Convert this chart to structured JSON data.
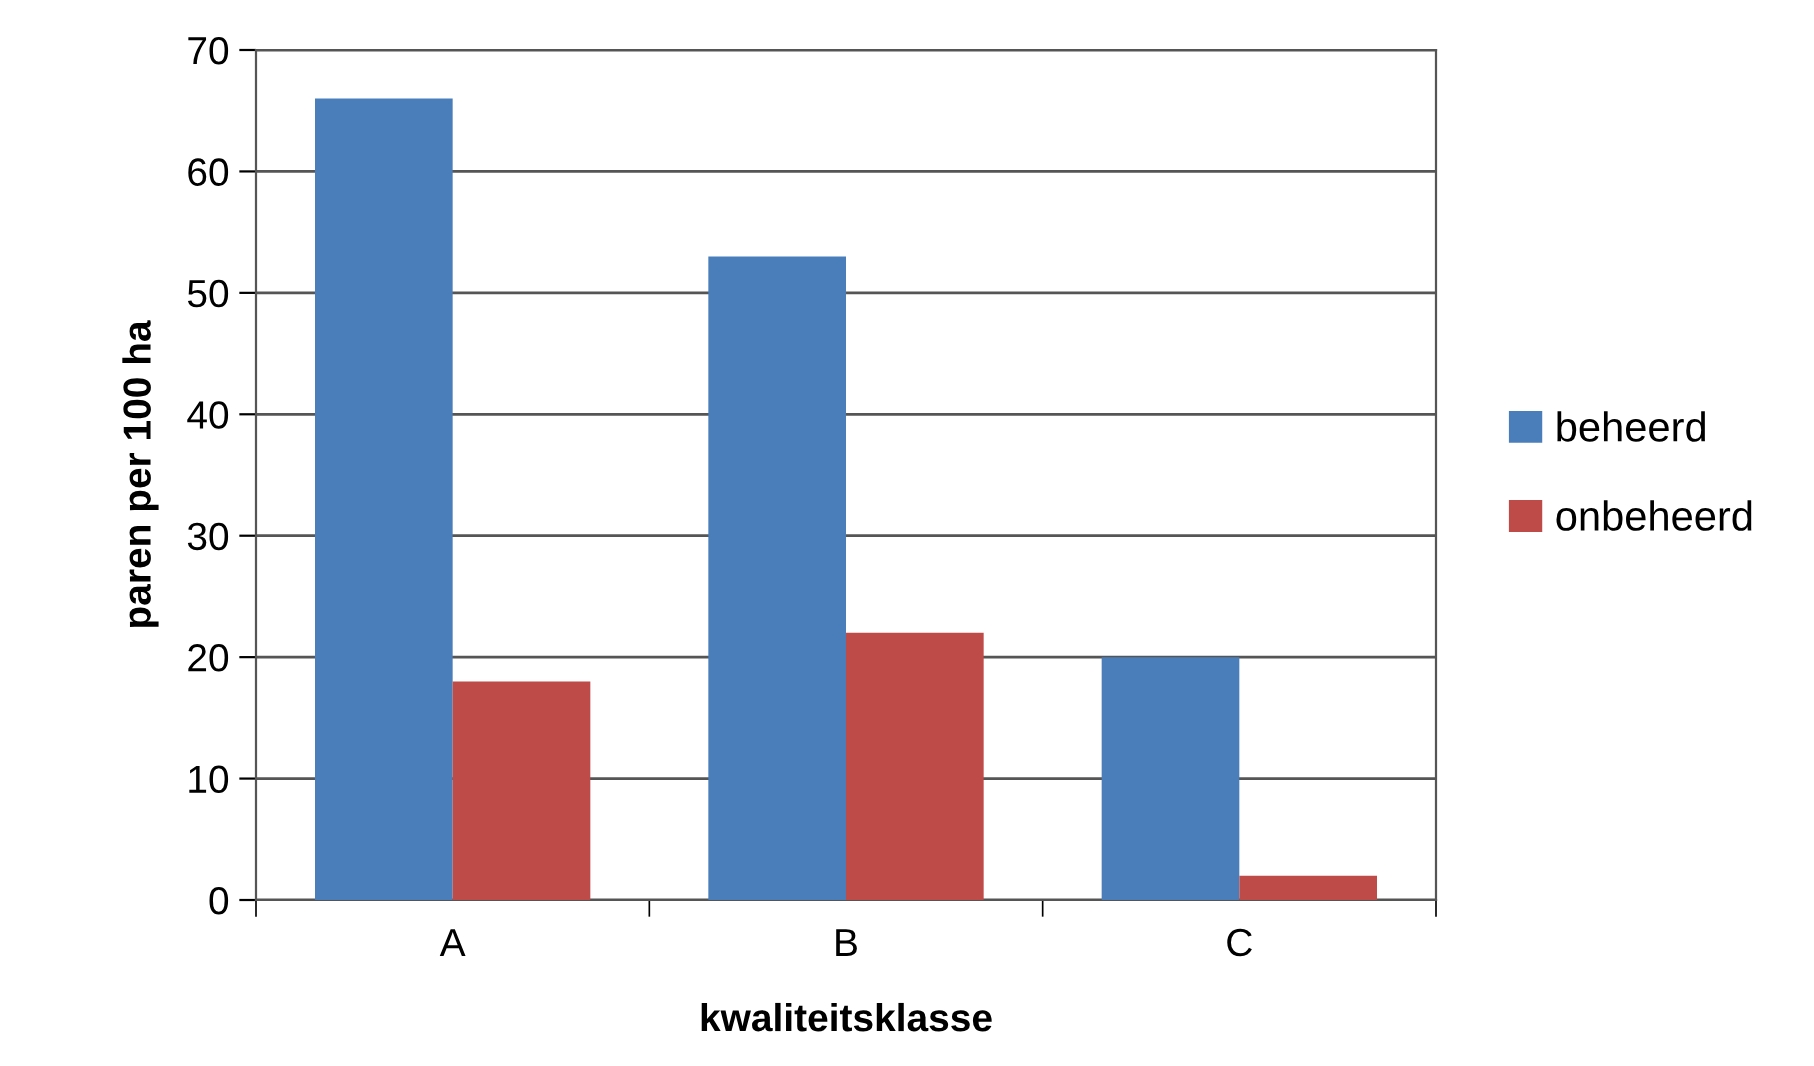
{
  "chart_data": {
    "type": "bar",
    "xlabel": "kwaliteitsklasse",
    "ylabel": "paren per 100 ha",
    "categories": [
      "A",
      "B",
      "C"
    ],
    "series": [
      {
        "name": "beheerd",
        "color": "#4a7ebb",
        "values": [
          66,
          53,
          20
        ]
      },
      {
        "name": "onbeheerd",
        "color": "#be4b48",
        "values": [
          18,
          22,
          2
        ]
      }
    ],
    "ylim": [
      0,
      70
    ],
    "yticks": [
      0,
      10,
      20,
      30,
      40,
      50,
      60,
      70
    ],
    "grid": "y",
    "legend": "right"
  }
}
